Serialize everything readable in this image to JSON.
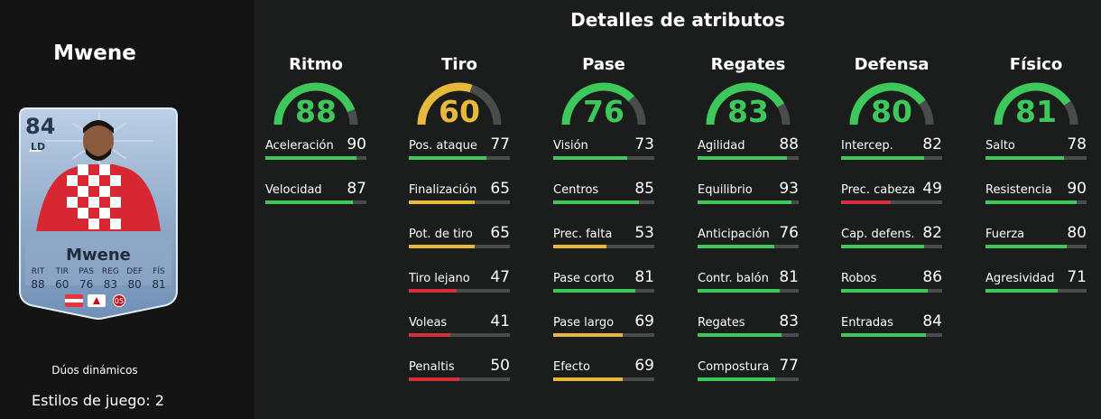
{
  "title": "Detalles de atributos",
  "player": {
    "name": "Mwene",
    "card": {
      "rating": "84",
      "position": "LD",
      "name": "Mwene",
      "stats": [
        {
          "label": "RIT",
          "value": "88"
        },
        {
          "label": "TIR",
          "value": "60"
        },
        {
          "label": "PAS",
          "value": "76"
        },
        {
          "label": "REG",
          "value": "83"
        },
        {
          "label": "DEF",
          "value": "80"
        },
        {
          "label": "FÍS",
          "value": "81"
        }
      ]
    },
    "card_type": "Dúos dinámicos",
    "playstyles": "Estilos de juego: 2"
  },
  "colors": {
    "green": "#3ec75a",
    "yellow": "#e8b83a",
    "red": "#d8303a",
    "track": "#4a4b4b"
  },
  "categories": [
    {
      "name": "Ritmo",
      "value": "88",
      "color": "#3ec75a",
      "stats": [
        {
          "label": "Aceleración",
          "value": "90",
          "color": "#3ec75a"
        },
        {
          "label": "Velocidad",
          "value": "87",
          "color": "#3ec75a"
        }
      ]
    },
    {
      "name": "Tiro",
      "value": "60",
      "color": "#e8b83a",
      "stats": [
        {
          "label": "Pos. ataque",
          "value": "77",
          "color": "#3ec75a"
        },
        {
          "label": "Finalización",
          "value": "65",
          "color": "#e8b83a"
        },
        {
          "label": "Pot. de tiro",
          "value": "65",
          "color": "#e8b83a"
        },
        {
          "label": "Tiro lejano",
          "value": "47",
          "color": "#d8303a"
        },
        {
          "label": "Voleas",
          "value": "41",
          "color": "#d8303a"
        },
        {
          "label": "Penaltis",
          "value": "50",
          "color": "#d8303a"
        }
      ]
    },
    {
      "name": "Pase",
      "value": "76",
      "color": "#3ec75a",
      "stats": [
        {
          "label": "Visión",
          "value": "73",
          "color": "#3ec75a"
        },
        {
          "label": "Centros",
          "value": "85",
          "color": "#3ec75a"
        },
        {
          "label": "Prec. falta",
          "value": "53",
          "color": "#e8b83a"
        },
        {
          "label": "Pase corto",
          "value": "81",
          "color": "#3ec75a"
        },
        {
          "label": "Pase largo",
          "value": "69",
          "color": "#e8b83a"
        },
        {
          "label": "Efecto",
          "value": "69",
          "color": "#e8b83a"
        }
      ]
    },
    {
      "name": "Regates",
      "value": "83",
      "color": "#3ec75a",
      "stats": [
        {
          "label": "Agilidad",
          "value": "88",
          "color": "#3ec75a"
        },
        {
          "label": "Equilibrio",
          "value": "93",
          "color": "#3ec75a"
        },
        {
          "label": "Anticipación",
          "value": "76",
          "color": "#3ec75a"
        },
        {
          "label": "Contr. balón",
          "value": "81",
          "color": "#3ec75a"
        },
        {
          "label": "Regates",
          "value": "83",
          "color": "#3ec75a"
        },
        {
          "label": "Compostura",
          "value": "77",
          "color": "#3ec75a"
        }
      ]
    },
    {
      "name": "Defensa",
      "value": "80",
      "color": "#3ec75a",
      "stats": [
        {
          "label": "Intercep.",
          "value": "82",
          "color": "#3ec75a"
        },
        {
          "label": "Prec. cabeza",
          "value": "49",
          "color": "#d8303a"
        },
        {
          "label": "Cap. defens.",
          "value": "82",
          "color": "#3ec75a"
        },
        {
          "label": "Robos",
          "value": "86",
          "color": "#3ec75a"
        },
        {
          "label": "Entradas",
          "value": "84",
          "color": "#3ec75a"
        }
      ]
    },
    {
      "name": "Físico",
      "value": "81",
      "color": "#3ec75a",
      "stats": [
        {
          "label": "Salto",
          "value": "78",
          "color": "#3ec75a"
        },
        {
          "label": "Resistencia",
          "value": "90",
          "color": "#3ec75a"
        },
        {
          "label": "Fuerza",
          "value": "80",
          "color": "#3ec75a"
        },
        {
          "label": "Agresividad",
          "value": "71",
          "color": "#3ec75a"
        }
      ]
    }
  ]
}
